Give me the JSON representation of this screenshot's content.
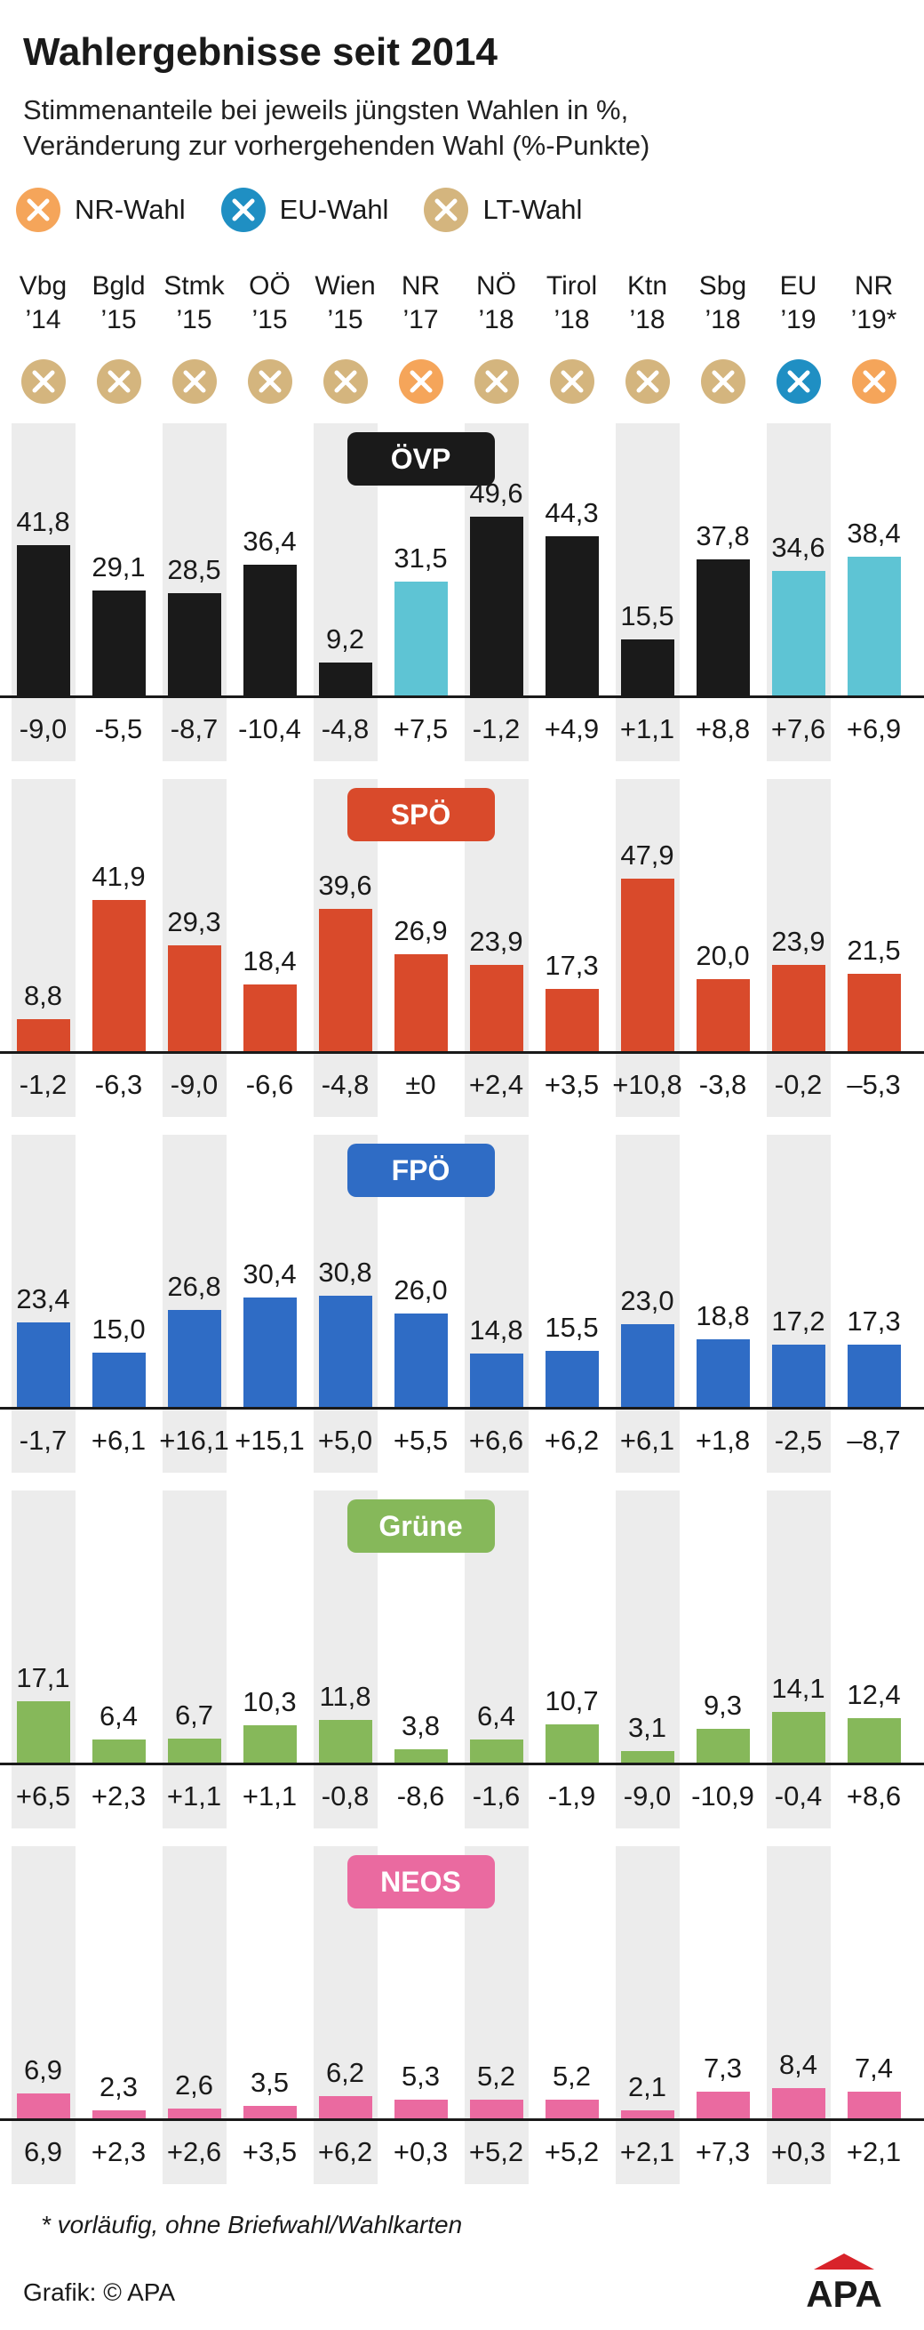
{
  "title": "Wahlergebnisse seit 2014",
  "subtitle": [
    "Stimmenanteile bei jeweils jüngsten Wahlen in %,",
    "Veränderung zur vorhergehenden Wahl (%-Punkte)"
  ],
  "legend": [
    {
      "label": "NR-Wahl",
      "type": "NR"
    },
    {
      "label": "EU-Wahl",
      "type": "EU"
    },
    {
      "label": "LT-Wahl",
      "type": "LT"
    }
  ],
  "colors": {
    "NR": "#f5a55a",
    "EU": "#1f8fc3",
    "LT": "#d4b57e",
    "column_bg": "#ececec",
    "ÖVP": "#1a1a1a",
    "ÖVP_highlight": "#5ec4d4",
    "SPÖ": "#d94a2b",
    "FPÖ": "#2f6cc5",
    "Grüne": "#86b85a",
    "NEOS": "#ea6aa0"
  },
  "icon_names": {
    "NR": "x-circle-icon-orange",
    "EU": "x-circle-icon-blue",
    "LT": "x-circle-icon-tan"
  },
  "footnote": "* vorläufig, ohne Briefwahl/Wahlkarten",
  "credit": "Grafik: © APA",
  "logo_text": "APA",
  "chart_data": {
    "type": "bar",
    "columns": [
      {
        "line1": "Vbg",
        "line2": "’14",
        "type": "LT"
      },
      {
        "line1": "Bgld",
        "line2": "’15",
        "type": "LT"
      },
      {
        "line1": "Stmk",
        "line2": "’15",
        "type": "LT"
      },
      {
        "line1": "OÖ",
        "line2": "’15",
        "type": "LT"
      },
      {
        "line1": "Wien",
        "line2": "’15",
        "type": "LT"
      },
      {
        "line1": "NR",
        "line2": "’17",
        "type": "NR"
      },
      {
        "line1": "NÖ",
        "line2": "’18",
        "type": "LT"
      },
      {
        "line1": "Tirol",
        "line2": "’18",
        "type": "LT"
      },
      {
        "line1": "Ktn",
        "line2": "’18",
        "type": "LT"
      },
      {
        "line1": "Sbg",
        "line2": "’18",
        "type": "LT"
      },
      {
        "line1": "EU",
        "line2": "’19",
        "type": "EU"
      },
      {
        "line1": "NR",
        "line2": "’19*",
        "type": "NR"
      }
    ],
    "series": [
      {
        "name": "ÖVP",
        "ylim": [
          0,
          50
        ],
        "highlight_columns": [
          5,
          10,
          11
        ],
        "values": [
          "41,8",
          "29,1",
          "28,5",
          "36,4",
          "9,2",
          "31,5",
          "49,6",
          "44,3",
          "15,5",
          "37,8",
          "34,6",
          "38,4"
        ],
        "changes": [
          "-9,0",
          "-5,5",
          "-8,7",
          "-10,4",
          "-4,8",
          "+7,5",
          "-1,2",
          "+4,9",
          "+1,1",
          "+8,8",
          "+7,6",
          "+6,9"
        ]
      },
      {
        "name": "SPÖ",
        "ylim": [
          0,
          50
        ],
        "values": [
          "8,8",
          "41,9",
          "29,3",
          "18,4",
          "39,6",
          "26,9",
          "23,9",
          "17,3",
          "47,9",
          "20,0",
          "23,9",
          "21,5"
        ],
        "changes": [
          "-1,2",
          "-6,3",
          "-9,0",
          "-6,6",
          "-4,8",
          "±0",
          "+2,4",
          "+3,5",
          "+10,8",
          "-3,8",
          "-0,2",
          "–5,3"
        ]
      },
      {
        "name": "FPÖ",
        "ylim": [
          0,
          50
        ],
        "values": [
          "23,4",
          "15,0",
          "26,8",
          "30,4",
          "30,8",
          "26,0",
          "14,8",
          "15,5",
          "23,0",
          "18,8",
          "17,2",
          "17,3"
        ],
        "changes": [
          "-1,7",
          "+6,1",
          "+16,1",
          "+15,1",
          "+5,0",
          "+5,5",
          "+6,6",
          "+6,2",
          "+6,1",
          "+1,8",
          "-2,5",
          "–8,7"
        ]
      },
      {
        "name": "Grüne",
        "ylim": [
          0,
          50
        ],
        "values": [
          "17,1",
          "6,4",
          "6,7",
          "10,3",
          "11,8",
          "3,8",
          "6,4",
          "10,7",
          "3,1",
          "9,3",
          "14,1",
          "12,4"
        ],
        "changes": [
          "+6,5",
          "+2,3",
          "+1,1",
          "+1,1",
          "-0,8",
          "-8,6",
          "-1,6",
          "-1,9",
          "-9,0",
          "-10,9",
          "-0,4",
          "+8,6"
        ]
      },
      {
        "name": "NEOS",
        "ylim": [
          0,
          50
        ],
        "values": [
          "6,9",
          "2,3",
          "2,6",
          "3,5",
          "6,2",
          "5,3",
          "5,2",
          "5,2",
          "2,1",
          "7,3",
          "8,4",
          "7,4"
        ],
        "changes": [
          "6,9",
          "+2,3",
          "+2,6",
          "+3,5",
          "+6,2",
          "+0,3",
          "+5,2",
          "+5,2",
          "+2,1",
          "+7,3",
          "+0,3",
          "+2,1"
        ]
      }
    ]
  }
}
